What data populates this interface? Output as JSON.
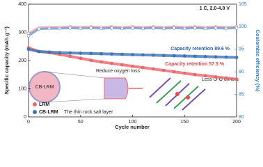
{
  "chart_data": {
    "type": "line",
    "x_label": "Cycle number",
    "y_label": "Specific capacity (mAh g⁻¹)",
    "y2_label": "Coulombic efficiency (%)",
    "x": [
      0,
      10,
      20,
      30,
      40,
      50,
      60,
      70,
      80,
      90,
      100,
      110,
      120,
      130,
      140,
      150,
      160,
      170,
      180,
      190,
      200
    ],
    "xlim": [
      0,
      200
    ],
    "xticks": [
      0,
      50,
      100,
      150,
      200
    ],
    "ylim": [
      0,
      400
    ],
    "yticks": [
      0,
      100,
      200,
      300,
      400
    ],
    "y2lim": [
      80,
      105
    ],
    "y2ticks": [
      80,
      85,
      90,
      95,
      100,
      105
    ],
    "series": [
      {
        "name": "LRM",
        "color": "#e8676b",
        "values": [
          245,
          232,
          228,
          222,
          215,
          208,
          201,
          195,
          190,
          185,
          180,
          175,
          170,
          165,
          160,
          155,
          150,
          146,
          142,
          138,
          134
        ]
      },
      {
        "name": "CB-LRM",
        "color": "#3f74b8",
        "values": [
          240,
          232,
          230,
          228,
          227,
          226,
          225,
          224,
          223,
          222,
          221,
          220,
          219,
          218,
          217,
          216,
          215,
          214,
          213,
          212,
          211
        ]
      },
      {
        "name": "LRM",
        "color": "#f19aa0",
        "axis": "y2",
        "values": [
          98.5,
          99.8,
          99.9,
          99.9,
          100,
          99.9,
          100,
          99.9,
          100,
          99.9,
          100,
          99.9,
          100,
          99.9,
          100,
          99.9,
          100,
          99.9,
          100,
          99.9,
          100
        ]
      },
      {
        "name": "CB-LRM",
        "color": "#6b9bd6",
        "axis": "y2",
        "values": [
          98.0,
          99.5,
          99.6,
          99.6,
          99.7,
          99.6,
          99.7,
          99.6,
          99.7,
          99.6,
          99.7,
          99.6,
          99.7,
          99.6,
          99.7,
          99.6,
          99.7,
          99.6,
          99.7,
          99.6,
          99.7
        ]
      }
    ],
    "annotations": [
      "1 C, 2.0-4.8 V",
      "Capacity retention 89.6 %",
      "Capacity retention 57.3 %",
      "Reduce oxygen loss",
      "Less O-O dimers",
      "CB-LRM",
      "The thin rock salt layer"
    ],
    "legend": "lower left"
  }
}
